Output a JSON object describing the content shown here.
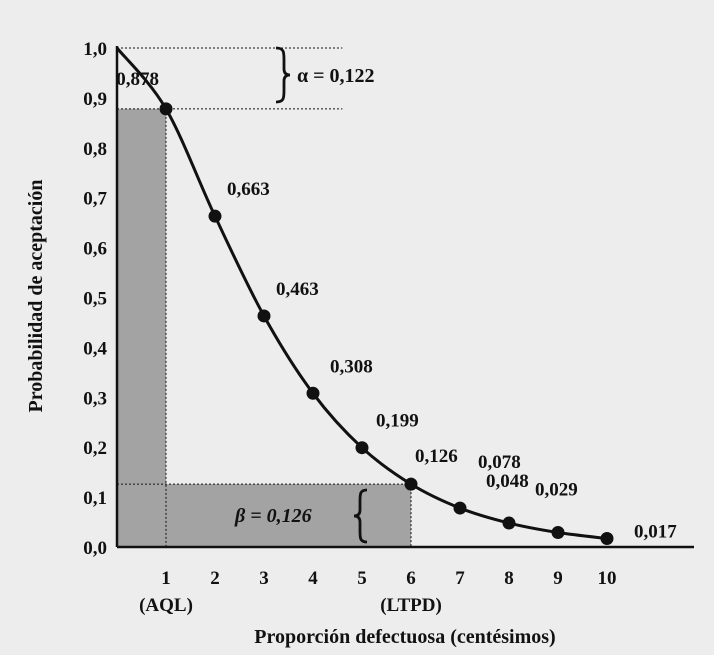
{
  "chart_data": {
    "type": "line",
    "title": "",
    "xlabel": "Proporción defectuosa (centésimos)",
    "ylabel": "Probabilidad de aceptación",
    "xlim": [
      0,
      11.4
    ],
    "ylim": [
      0,
      1.0
    ],
    "x_ticks": [
      "1",
      "2",
      "3",
      "4",
      "5",
      "6",
      "7",
      "8",
      "9",
      "10"
    ],
    "y_ticks": [
      "0,0",
      "0,1",
      "0,2",
      "0,3",
      "0,4",
      "0,5",
      "0,6",
      "0,7",
      "0,8",
      "0,9",
      "1,0"
    ],
    "x_sub_labels": [
      {
        "x": 1,
        "text": "(AQL)"
      },
      {
        "x": 6,
        "text": "(LTPD)"
      }
    ],
    "curve_start": {
      "x": 0,
      "y": 1.0
    },
    "series": [
      {
        "x": [
          1,
          2,
          3,
          4,
          5,
          6,
          7,
          8,
          9,
          10
        ],
        "values": [
          0.878,
          0.663,
          0.463,
          0.308,
          0.199,
          0.126,
          0.078,
          0.048,
          0.029,
          0.017
        ],
        "point_labels": [
          "0,878",
          "0,663",
          "0,463",
          "0,308",
          "0,199",
          "0,126",
          "0,078",
          "0,048",
          "0,029",
          "0,017"
        ]
      }
    ],
    "annotations": {
      "alpha": "α = 0,122",
      "beta": "β = 0,126"
    },
    "grid": false
  },
  "colors": {
    "background": "#ededed",
    "shade": "#a3a3a3",
    "line": "#111111"
  }
}
